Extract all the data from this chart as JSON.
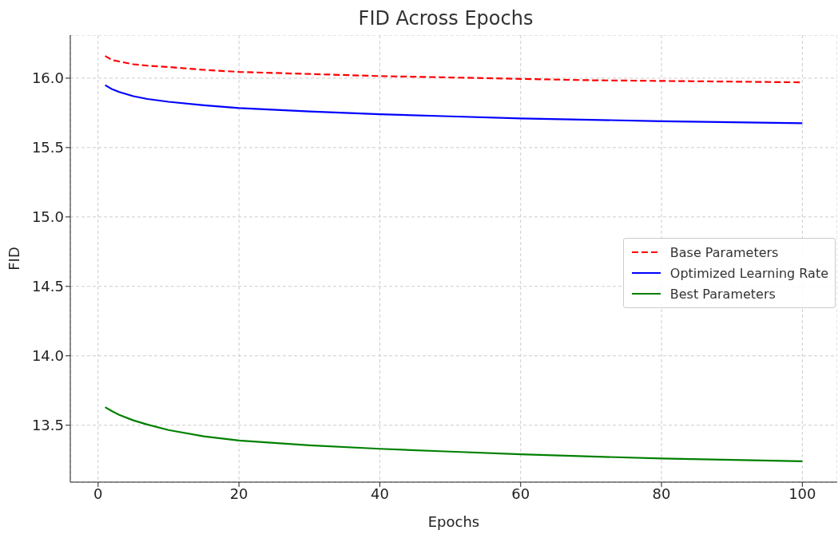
{
  "chart_data": {
    "type": "line",
    "title": "FID Across Epochs",
    "xlabel": "Epochs",
    "ylabel": "FID",
    "x": [
      1,
      2,
      3,
      5,
      7,
      10,
      15,
      20,
      30,
      40,
      50,
      60,
      70,
      80,
      90,
      100
    ],
    "series": [
      {
        "name": "Base Parameters",
        "color": "#ff0000",
        "line_style": "dashed",
        "values": [
          16.16,
          16.13,
          16.12,
          16.1,
          16.09,
          16.08,
          16.06,
          16.045,
          16.03,
          16.015,
          16.005,
          15.995,
          15.985,
          15.98,
          15.975,
          15.97
        ]
      },
      {
        "name": "Optimized Learning Rate",
        "color": "#0000ff",
        "line_style": "solid",
        "values": [
          15.95,
          15.92,
          15.9,
          15.87,
          15.85,
          15.83,
          15.805,
          15.785,
          15.76,
          15.74,
          15.725,
          15.71,
          15.7,
          15.69,
          15.683,
          15.675
        ]
      },
      {
        "name": "Best Parameters",
        "color": "#008000",
        "line_style": "solid",
        "values": [
          13.63,
          13.6,
          13.575,
          13.535,
          13.505,
          13.465,
          13.42,
          13.39,
          13.355,
          13.33,
          13.31,
          13.29,
          13.275,
          13.26,
          13.25,
          13.24
        ]
      }
    ],
    "xlim": [
      -3.95,
      104.95
    ],
    "xticks": [
      0,
      20,
      40,
      60,
      80,
      100
    ],
    "ylim": [
      13.09,
      16.31
    ],
    "yticks": [
      {
        "value": 13.5,
        "label": "13.5"
      },
      {
        "value": 14,
        "label": "14.0"
      },
      {
        "value": 14.5,
        "label": "14.5"
      },
      {
        "value": 15,
        "label": "15.0"
      },
      {
        "value": 15.5,
        "label": "15.5"
      },
      {
        "value": 16,
        "label": "16.0"
      }
    ],
    "grid": true,
    "legend": "center right"
  }
}
